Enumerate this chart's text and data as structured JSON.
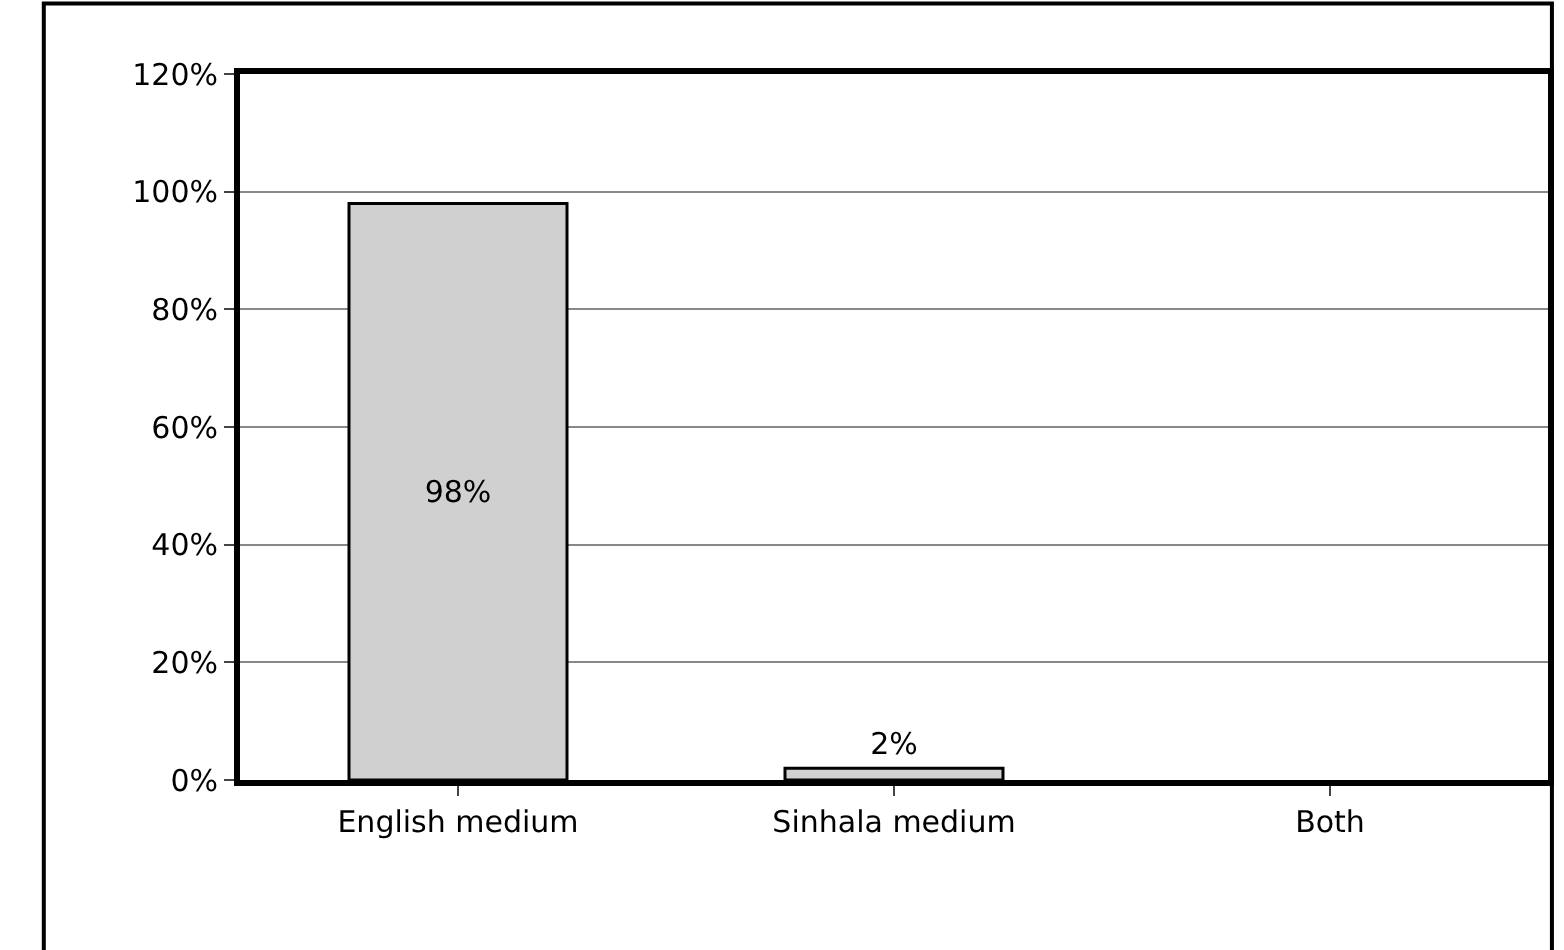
{
  "chart_data": {
    "type": "bar",
    "categories": [
      "English medium",
      "Sinhala medium",
      "Both"
    ],
    "values": [
      98,
      2,
      0
    ],
    "value_labels": [
      "98%",
      "2%",
      null
    ],
    "color": "#d0d0d0",
    "ylim": [
      0,
      120
    ],
    "yticks": [
      {
        "value": 0,
        "label": "0%"
      },
      {
        "value": 20,
        "label": "20%"
      },
      {
        "value": 40,
        "label": "40%"
      },
      {
        "value": 60,
        "label": "60%"
      },
      {
        "value": 80,
        "label": "80%"
      },
      {
        "value": 100,
        "label": "100%"
      },
      {
        "value": 120,
        "label": "120%"
      }
    ],
    "grid": "y"
  }
}
